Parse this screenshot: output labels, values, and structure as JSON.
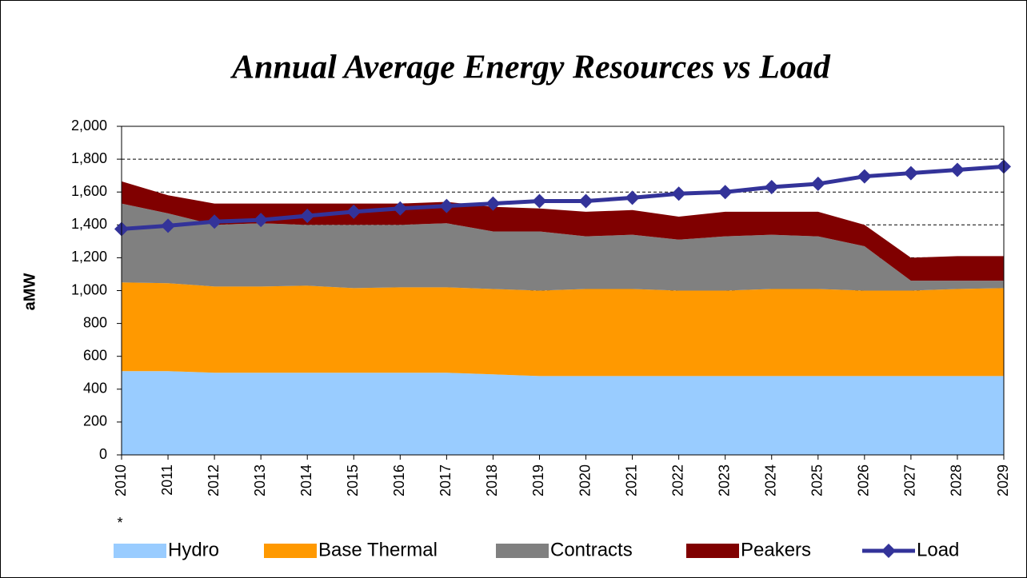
{
  "chart_data": {
    "type": "stacked_area_line",
    "title": "Annual Average Energy Resources vs Load",
    "ylabel": "aMW",
    "annotation": "*",
    "categories": [
      "2010",
      "2011",
      "2012",
      "2013",
      "2014",
      "2015",
      "2016",
      "2017",
      "2018",
      "2019",
      "2020",
      "2021",
      "2022",
      "2023",
      "2024",
      "2025",
      "2026",
      "2027",
      "2028",
      "2029"
    ],
    "series": [
      {
        "name": "Hydro",
        "color": "#99ccff",
        "kind": "area",
        "values": [
          510,
          510,
          500,
          500,
          500,
          500,
          500,
          500,
          490,
          480,
          480,
          480,
          480,
          480,
          480,
          480,
          480,
          480,
          480,
          480
        ]
      },
      {
        "name": "Base Thermal",
        "color": "#ff9900",
        "kind": "area",
        "values": [
          540,
          535,
          525,
          525,
          530,
          515,
          520,
          520,
          520,
          520,
          530,
          530,
          520,
          520,
          530,
          530,
          520,
          520,
          530,
          535
        ]
      },
      {
        "name": "Contracts",
        "color": "#808080",
        "kind": "area",
        "values": [
          480,
          425,
          375,
          385,
          370,
          385,
          380,
          390,
          350,
          360,
          320,
          330,
          310,
          330,
          330,
          320,
          270,
          60,
          50,
          45
        ]
      },
      {
        "name": "Peakers",
        "color": "#800000",
        "kind": "area",
        "values": [
          135,
          110,
          130,
          120,
          130,
          130,
          130,
          130,
          150,
          140,
          150,
          150,
          140,
          150,
          140,
          150,
          130,
          140,
          150,
          150
        ]
      },
      {
        "name": "Load",
        "color": "#333399",
        "kind": "line",
        "values": [
          1375,
          1395,
          1420,
          1430,
          1455,
          1480,
          1500,
          1515,
          1530,
          1545,
          1545,
          1565,
          1590,
          1600,
          1630,
          1650,
          1695,
          1715,
          1735,
          1755
        ]
      }
    ],
    "ylim": [
      0,
      2000
    ],
    "yticks": [
      0,
      200,
      400,
      600,
      800,
      {
        "value": 1000,
        "label": "1,000"
      },
      {
        "value": 1200,
        "label": "1,200"
      },
      {
        "value": 1400,
        "label": "1,400"
      },
      {
        "value": 1600,
        "label": "1,600"
      },
      {
        "value": 1800,
        "label": "1,800"
      },
      {
        "value": 2000,
        "label": "2,000"
      }
    ],
    "grid": true,
    "legend": "bottom"
  }
}
